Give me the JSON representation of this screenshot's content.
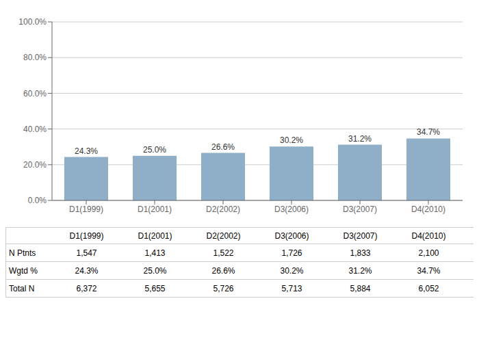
{
  "chart_data": {
    "type": "bar",
    "categories": [
      "D1(1999)",
      "D1(2001)",
      "D2(2002)",
      "D3(2006)",
      "D3(2007)",
      "D4(2010)"
    ],
    "values": [
      24.3,
      25.0,
      26.6,
      30.2,
      31.2,
      34.7
    ],
    "value_labels": [
      "24.3%",
      "25.0%",
      "26.6%",
      "30.2%",
      "31.2%",
      "34.7%"
    ],
    "data_labels": true,
    "color": "#8faec8",
    "ylim": [
      0,
      100
    ],
    "yticks": [
      {
        "value": 0,
        "label": "0.0%"
      },
      {
        "value": 20,
        "label": "20.0%"
      },
      {
        "value": 40,
        "label": "40.0%"
      },
      {
        "value": 60,
        "label": "60.0%"
      },
      {
        "value": 80,
        "label": "80.0%"
      },
      {
        "value": 100,
        "label": "100.0%"
      }
    ],
    "grid": true,
    "table": {
      "rows": [
        {
          "label": "N Ptnts",
          "values": [
            "1,547",
            "1,413",
            "1,522",
            "1,726",
            "1,833",
            "2,100"
          ]
        },
        {
          "label": "Wgtd %",
          "values": [
            "24.3%",
            "25.0%",
            "26.6%",
            "30.2%",
            "31.2%",
            "34.7%"
          ]
        },
        {
          "label": "Total N",
          "values": [
            "6,372",
            "5,655",
            "5,726",
            "5,713",
            "5,884",
            "6,052"
          ]
        }
      ]
    }
  }
}
